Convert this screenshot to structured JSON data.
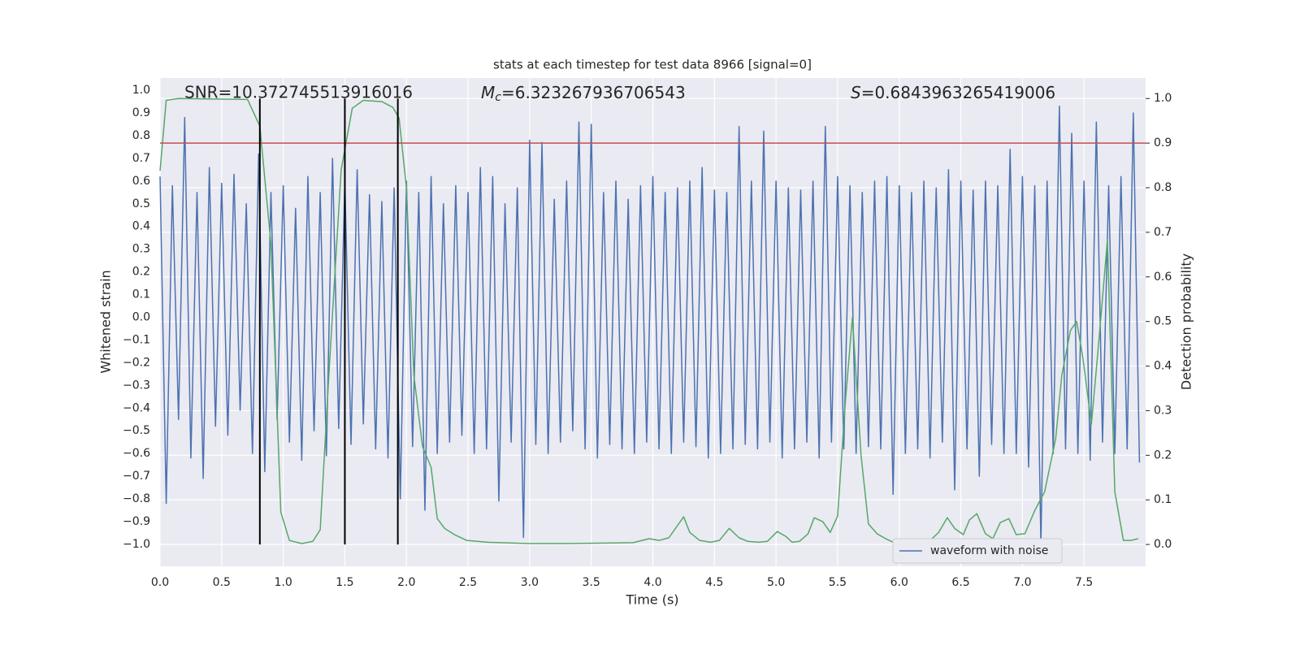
{
  "chart_data": {
    "type": "line",
    "title": "stats at each timestep for test data 8966 [signal=0]",
    "xlabel": "Time (s)",
    "ylabel": "Whitened strain",
    "y2label": "Detection probability",
    "annotations": [
      {
        "text": "SNR=10.372745513916016"
      },
      {
        "symbol": "M",
        "subscript": "c",
        "text": "=6.323267936706543"
      },
      {
        "symbol": "S",
        "text": "=0.6843963265419006"
      }
    ],
    "xlim": [
      0,
      8
    ],
    "ylim": [
      -1.097,
      1.054
    ],
    "y2lim": [
      -0.049,
      1.046
    ],
    "xticks": [
      {
        "value": 0,
        "label": "0.0"
      },
      0.5,
      {
        "value": 1,
        "label": "1.0"
      },
      1.5,
      {
        "value": 2,
        "label": "2.0"
      },
      2.5,
      {
        "value": 3,
        "label": "3.0"
      },
      3.5,
      {
        "value": 4,
        "label": "4.0"
      },
      4.5,
      {
        "value": 5,
        "label": "5.0"
      },
      5.5,
      {
        "value": 6,
        "label": "6.0"
      },
      6.5,
      {
        "value": 7,
        "label": "7.0"
      },
      7.5
    ],
    "yticks": [
      {
        "value": -1.0,
        "label": "−1.0"
      },
      {
        "value": -0.9,
        "label": "−0.9"
      },
      {
        "value": -0.8,
        "label": "−0.8"
      },
      {
        "value": -0.7,
        "label": "−0.7"
      },
      {
        "value": -0.6,
        "label": "−0.6"
      },
      {
        "value": -0.5,
        "label": "−0.5"
      },
      {
        "value": -0.4,
        "label": "−0.4"
      },
      {
        "value": -0.3,
        "label": "−0.3"
      },
      {
        "value": -0.2,
        "label": "−0.2"
      },
      {
        "value": -0.1,
        "label": "−0.1"
      },
      {
        "value": 0,
        "label": "0.0"
      },
      0.1,
      0.2,
      0.3,
      0.4,
      0.5,
      0.6,
      0.7,
      0.8,
      0.9,
      {
        "value": 1,
        "label": "1.0"
      }
    ],
    "y2ticks": [
      {
        "value": 0,
        "label": "0.0"
      },
      0.1,
      0.2,
      0.3,
      0.4,
      0.5,
      0.6,
      0.7,
      0.8,
      0.9,
      {
        "value": 1,
        "label": "1.0"
      }
    ],
    "grid": true,
    "legend": "lower right",
    "threshold": {
      "value": 0.9,
      "axis": "y2",
      "color": "#c44e52"
    },
    "vlines": {
      "x": [
        0.81,
        1.5,
        1.93
      ],
      "color": "#000000"
    },
    "series": [
      {
        "name": "waveform with noise",
        "color": "#4c72b0",
        "x": [
          0,
          0.05,
          0.1,
          0.15,
          0.2,
          0.25,
          0.3,
          0.35,
          0.4,
          0.45,
          0.5,
          0.55,
          0.6,
          0.65,
          0.7,
          0.75,
          0.8,
          0.85,
          0.9,
          0.95,
          1,
          1.05,
          1.1,
          1.15,
          1.2,
          1.25,
          1.3,
          1.35,
          1.4,
          1.45,
          1.5,
          1.55,
          1.6,
          1.65,
          1.7,
          1.75,
          1.8,
          1.85,
          1.9,
          1.95,
          2,
          2.05,
          2.1,
          2.15,
          2.2,
          2.25,
          2.3,
          2.35,
          2.4,
          2.45,
          2.5,
          2.55,
          2.6,
          2.65,
          2.7,
          2.75,
          2.8,
          2.85,
          2.9,
          2.95,
          3,
          3.05,
          3.1,
          3.15,
          3.2,
          3.25,
          3.3,
          3.35,
          3.4,
          3.45,
          3.5,
          3.55,
          3.6,
          3.65,
          3.7,
          3.75,
          3.8,
          3.85,
          3.9,
          3.95,
          4,
          4.05,
          4.1,
          4.15,
          4.2,
          4.25,
          4.3,
          4.35,
          4.4,
          4.45,
          4.5,
          4.55,
          4.6,
          4.65,
          4.7,
          4.75,
          4.8,
          4.85,
          4.9,
          4.95,
          5,
          5.05,
          5.1,
          5.15,
          5.2,
          5.25,
          5.3,
          5.35,
          5.4,
          5.45,
          5.5,
          5.55,
          5.6,
          5.65,
          5.7,
          5.75,
          5.8,
          5.85,
          5.9,
          5.95,
          6,
          6.05,
          6.1,
          6.15,
          6.2,
          6.25,
          6.3,
          6.35,
          6.4,
          6.45,
          6.5,
          6.55,
          6.6,
          6.65,
          6.7,
          6.75,
          6.8,
          6.85,
          6.9,
          6.95,
          7,
          7.05,
          7.1,
          7.15,
          7.2,
          7.25,
          7.3,
          7.35,
          7.4,
          7.45,
          7.5,
          7.55,
          7.6,
          7.65,
          7.7,
          7.75,
          7.8,
          7.85,
          7.9,
          7.95
        ],
        "values": [
          0.62,
          -0.82,
          0.58,
          -0.45,
          0.88,
          -0.62,
          0.55,
          -0.71,
          0.66,
          -0.48,
          0.59,
          -0.52,
          0.63,
          -0.41,
          0.5,
          -0.6,
          0.72,
          -0.68,
          0.55,
          -0.45,
          0.58,
          -0.55,
          0.48,
          -0.63,
          0.62,
          -0.5,
          0.55,
          -0.61,
          0.7,
          -0.49,
          0.6,
          -0.56,
          0.65,
          -0.47,
          0.54,
          -0.58,
          0.51,
          -0.62,
          0.57,
          -0.8,
          0.6,
          -0.57,
          0.55,
          -0.85,
          0.62,
          -0.6,
          0.5,
          -0.55,
          0.58,
          -0.52,
          0.55,
          -0.6,
          0.66,
          -0.58,
          0.62,
          -0.81,
          0.5,
          -0.55,
          0.57,
          -0.97,
          0.78,
          -0.56,
          0.77,
          -0.6,
          0.52,
          -0.55,
          0.6,
          -0.5,
          0.86,
          -0.58,
          0.85,
          -0.62,
          0.55,
          -0.56,
          0.6,
          -0.58,
          0.52,
          -0.6,
          0.58,
          -0.55,
          0.62,
          -0.58,
          0.55,
          -0.6,
          0.57,
          -0.55,
          0.6,
          -0.57,
          0.66,
          -0.62,
          0.56,
          -0.6,
          0.55,
          -0.58,
          0.84,
          -0.56,
          0.6,
          -0.58,
          0.82,
          -0.55,
          0.6,
          -0.62,
          0.57,
          -0.58,
          0.56,
          -0.55,
          0.6,
          -0.62,
          0.84,
          -0.55,
          0.62,
          -0.58,
          0.58,
          -0.6,
          0.55,
          -0.57,
          0.6,
          -0.58,
          0.62,
          -0.78,
          0.58,
          -0.6,
          0.55,
          -0.58,
          0.6,
          -0.62,
          0.57,
          -0.55,
          0.65,
          -0.76,
          0.6,
          -0.58,
          0.56,
          -0.7,
          0.6,
          -0.56,
          0.58,
          -0.6,
          0.74,
          -0.6,
          0.62,
          -0.66,
          0.58,
          -1.0,
          0.6,
          -0.6,
          0.93,
          -0.58,
          0.81,
          -0.6,
          0.6,
          -0.63,
          0.86,
          -0.55,
          0.58,
          -0.6,
          0.62,
          -0.58,
          0.9,
          -0.64
        ]
      },
      {
        "color": "#55a868",
        "axis": "y2",
        "x": [
          0,
          0.05,
          0.15,
          0.71,
          0.81,
          0.9,
          0.98,
          1.05,
          1.15,
          1.24,
          1.3,
          1.37,
          1.47,
          1.56,
          1.65,
          1.8,
          1.89,
          1.94,
          2.0,
          2.06,
          2.13,
          2.2,
          2.25,
          2.31,
          2.39,
          2.49,
          2.66,
          2.99,
          3.32,
          3.84,
          3.97,
          4.05,
          4.13,
          4.25,
          4.3,
          4.38,
          4.47,
          4.54,
          4.62,
          4.7,
          4.77,
          4.86,
          4.93,
          5.01,
          5.08,
          5.13,
          5.19,
          5.26,
          5.31,
          5.38,
          5.44,
          5.5,
          5.56,
          5.62,
          5.69,
          5.75,
          5.82,
          5.89,
          5.95,
          6.02,
          6.12,
          6.18,
          6.25,
          6.32,
          6.39,
          6.45,
          6.52,
          6.57,
          6.63,
          6.7,
          6.76,
          6.82,
          6.89,
          6.95,
          7.02,
          7.1,
          7.18,
          7.27,
          7.32,
          7.39,
          7.44,
          7.49,
          7.56,
          7.62,
          7.69,
          7.75,
          7.82,
          7.88,
          7.94
        ],
        "values": [
          0.838,
          0.996,
          1.0,
          0.998,
          0.938,
          0.674,
          0.073,
          0.009,
          0.002,
          0.007,
          0.033,
          0.38,
          0.84,
          0.978,
          0.996,
          0.993,
          0.98,
          0.956,
          0.8,
          0.38,
          0.22,
          0.173,
          0.058,
          0.036,
          0.022,
          0.009,
          0.005,
          0.002,
          0.002,
          0.004,
          0.013,
          0.009,
          0.015,
          0.062,
          0.027,
          0.009,
          0.005,
          0.009,
          0.036,
          0.015,
          0.007,
          0.005,
          0.007,
          0.029,
          0.018,
          0.005,
          0.007,
          0.024,
          0.06,
          0.051,
          0.027,
          0.064,
          0.31,
          0.51,
          0.2,
          0.046,
          0.024,
          0.013,
          0.005,
          0.004,
          0.009,
          0.007,
          0.009,
          0.027,
          0.06,
          0.036,
          0.022,
          0.055,
          0.069,
          0.024,
          0.013,
          0.049,
          0.058,
          0.022,
          0.024,
          0.076,
          0.118,
          0.237,
          0.38,
          0.48,
          0.5,
          0.42,
          0.27,
          0.455,
          0.683,
          0.118,
          0.009,
          0.009,
          0.013
        ]
      }
    ]
  }
}
